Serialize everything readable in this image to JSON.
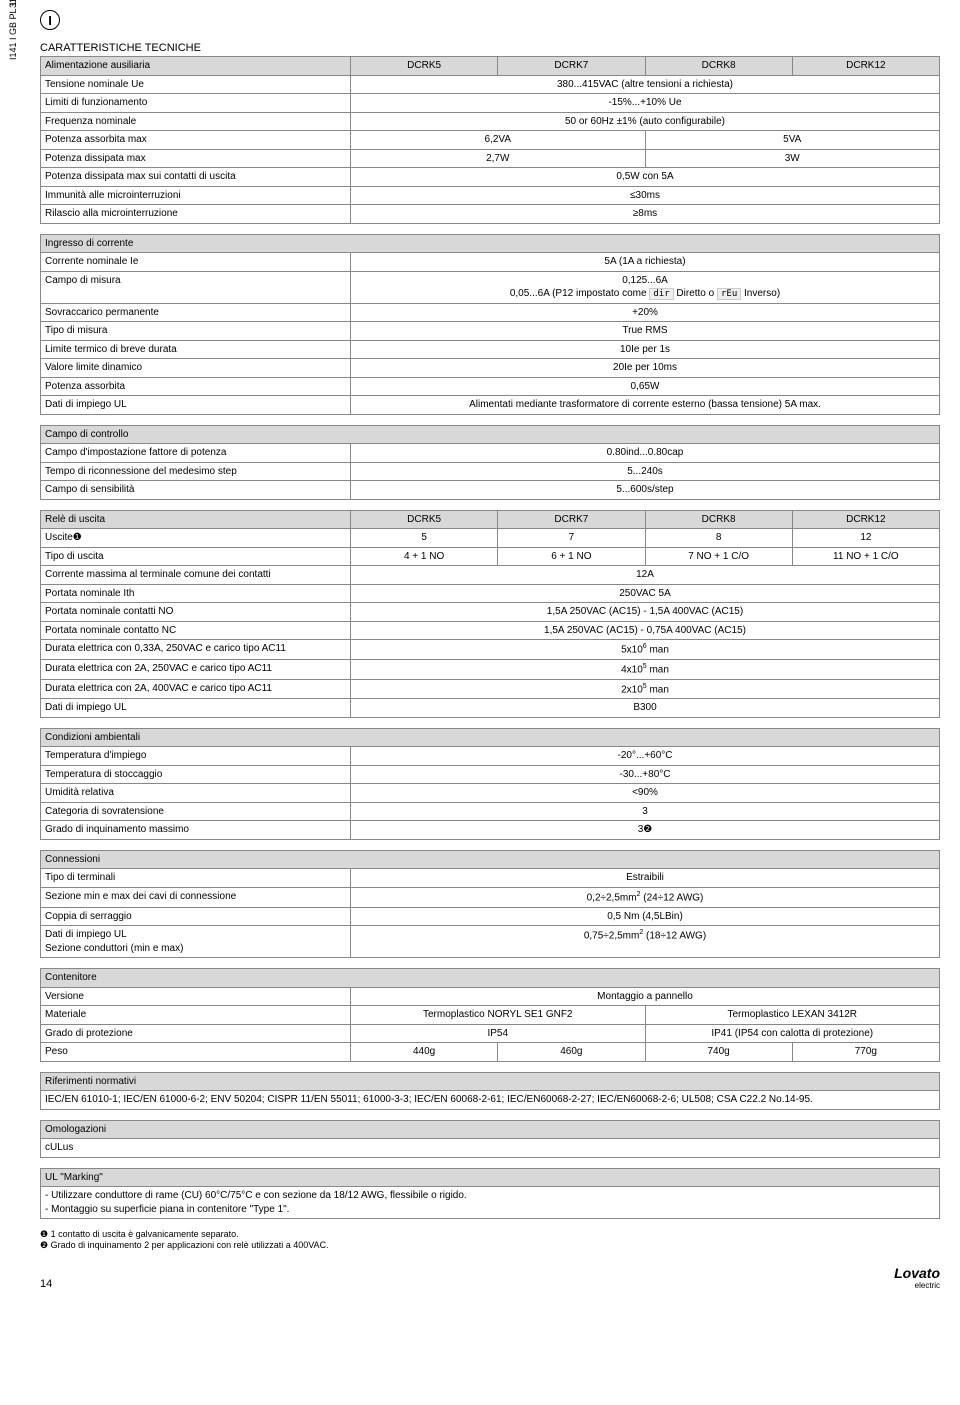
{
  "top_code": "31100027",
  "side_text": "I141 I GB PL 10 11",
  "badge": "I",
  "section_title": "CARATTERISTICHE TECNICHE",
  "t1": {
    "header": "Alimentazione ausiliaria",
    "cols": [
      "DCRK5",
      "DCRK7",
      "DCRK8",
      "DCRK12"
    ],
    "rows": [
      {
        "label": "Tensione nominale Ue",
        "span4": "380...415VAC  (altre tensioni a richiesta)"
      },
      {
        "label": "Limiti di funzionamento",
        "span4": "-15%...+10% Ue"
      },
      {
        "label": "Frequenza nominale",
        "span4": "50 or 60Hz ±1% (auto configurabile)"
      },
      {
        "label": "Potenza assorbita max",
        "span2a": "6,2VA",
        "span2b": "5VA"
      },
      {
        "label": "Potenza dissipata max",
        "span2a": "2,7W",
        "span2b": "3W"
      },
      {
        "label": "Potenza dissipata max sui contatti di uscita",
        "span4": "0,5W  con 5A"
      },
      {
        "label": "Immunità alle microinterruzioni",
        "span4": "≤30ms"
      },
      {
        "label": "Rilascio alla microinterruzione",
        "span4": "≥8ms"
      }
    ]
  },
  "t2": {
    "header": "Ingresso di corrente",
    "rows": [
      {
        "label": "Corrente nominale Ie",
        "val": "5A (1A a richiesta)"
      },
      {
        "label": "Campo di misura",
        "val_line1": "0,125...6A",
        "val_line2": "0,05...6A (P12 impostato come",
        "code1": "dir",
        "mid": " Diretto o ",
        "code2": "rEu",
        "end": " Inverso)"
      },
      {
        "label": "Sovraccarico permanente",
        "val": "+20%"
      },
      {
        "label": "Tipo di misura",
        "val": "True RMS"
      },
      {
        "label": "Limite termico di breve durata",
        "val": "10Ie per 1s"
      },
      {
        "label": "Valore limite dinamico",
        "val": "20Ie per 10ms"
      },
      {
        "label": "Potenza assorbita",
        "val": "0,65W"
      },
      {
        "label": "Dati di impiego UL",
        "val": "Alimentati mediante trasformatore di corrente esterno (bassa tensione) 5A max."
      }
    ]
  },
  "t3": {
    "header": "Campo di controllo",
    "rows": [
      {
        "label": "Campo d'impostazione fattore di potenza",
        "val": "0.80ind...0.80cap"
      },
      {
        "label": "Tempo di riconnessione del medesimo step",
        "val": "5...240s"
      },
      {
        "label": "Campo di sensibilità",
        "val": "5...600s/step"
      }
    ]
  },
  "t4": {
    "header": "Relè di uscita",
    "cols": [
      "DCRK5",
      "DCRK7",
      "DCRK8",
      "DCRK12"
    ],
    "rows": [
      {
        "label": "Uscite❶",
        "c": [
          "5",
          "7",
          "8",
          "12"
        ]
      },
      {
        "label": "Tipo di uscita",
        "c": [
          "4 + 1 NO",
          "6 + 1 NO",
          "7 NO + 1 C/O",
          "11 NO + 1 C/O"
        ]
      },
      {
        "label": "Corrente massima al terminale comune dei contatti",
        "span4": "12A"
      },
      {
        "label": "Portata nominale Ith",
        "span4": "250VAC 5A"
      },
      {
        "label": "Portata nominale contatti NO",
        "span4": "1,5A 250VAC (AC15) - 1,5A 400VAC (AC15)"
      },
      {
        "label": "Portata nominale contatto NC",
        "span4": "1,5A 250VAC (AC15) - 0,75A 400VAC (AC15)"
      },
      {
        "label": "Durata elettrica con 0,33A, 250VAC e carico tipo AC11",
        "span4_html": "5x10<sup>6</sup> man"
      },
      {
        "label": "Durata elettrica con 2A, 250VAC e carico tipo AC11",
        "span4_html": "4x10<sup>5</sup> man"
      },
      {
        "label": "Durata elettrica con 2A, 400VAC e carico tipo AC11",
        "span4_html": "2x10<sup>5</sup> man"
      },
      {
        "label": "Dati di impiego UL",
        "span4": "B300"
      }
    ]
  },
  "t5": {
    "header": "Condizioni ambientali",
    "rows": [
      {
        "label": "Temperatura d'impiego",
        "val": "-20°...+60°C"
      },
      {
        "label": "Temperatura di stoccaggio",
        "val": "-30...+80°C"
      },
      {
        "label": "Umidità relativa",
        "val": "<90%"
      },
      {
        "label": "Categoria di sovratensione",
        "val": "3"
      },
      {
        "label": "Grado di inquinamento massimo",
        "val": "3❷"
      }
    ]
  },
  "t6": {
    "header": "Connessioni",
    "rows": [
      {
        "label": "Tipo di terminali",
        "val": "Estraibili"
      },
      {
        "label": "Sezione min e max dei cavi di connessione",
        "val_html": "0,2÷2,5mm<sup>2</sup> (24÷12 AWG)"
      },
      {
        "label": "Coppia di serraggio",
        "val": "0,5 Nm (4,5LBin)"
      },
      {
        "label": "Dati di impiego UL",
        "label2": "Sezione conduttori (min e max)",
        "val_html": "0,75÷2,5mm<sup>2</sup> (18÷12 AWG)"
      }
    ]
  },
  "t7": {
    "header": "Contenitore",
    "rows": [
      {
        "label": "Versione",
        "span4": "Montaggio a pannello"
      },
      {
        "label": "Materiale",
        "span2a": "Termoplastico NORYL SE1 GNF2",
        "span2b": "Termoplastico LEXAN 3412R"
      },
      {
        "label": "Grado di protezione",
        "span2a": "IP54",
        "span2b": "IP41 (IP54 con calotta di protezione)"
      },
      {
        "label": "Peso",
        "c": [
          "440g",
          "460g",
          "740g",
          "770g"
        ]
      }
    ]
  },
  "t8": {
    "header": "Riferimenti normativi",
    "text": "IEC/EN 61010-1; IEC/EN 61000-6-2; ENV 50204; CISPR 11/EN 55011; 61000-3-3; IEC/EN 60068-2-61; IEC/EN60068-2-27; IEC/EN60068-2-6; UL508; CSA C22.2 No.14-95."
  },
  "t9": {
    "header": "Omologazioni",
    "text": "cULus"
  },
  "t10": {
    "header": "UL \"Marking\"",
    "line1": "- Utilizzare conduttore di rame (CU) 60°C/75°C e con sezione da 18/12 AWG, flessibile o rigido.",
    "line2": "- Montaggio su superficie piana in contenitore \"Type 1\"."
  },
  "notes": {
    "n1": "❶ 1 contatto di uscita è galvanicamente separato.",
    "n2": "❷ Grado di inquinamento 2 per applicazioni con relè utilizzati a 400VAC."
  },
  "page": "14",
  "brand": "Lovato",
  "brand_sub": "electric"
}
